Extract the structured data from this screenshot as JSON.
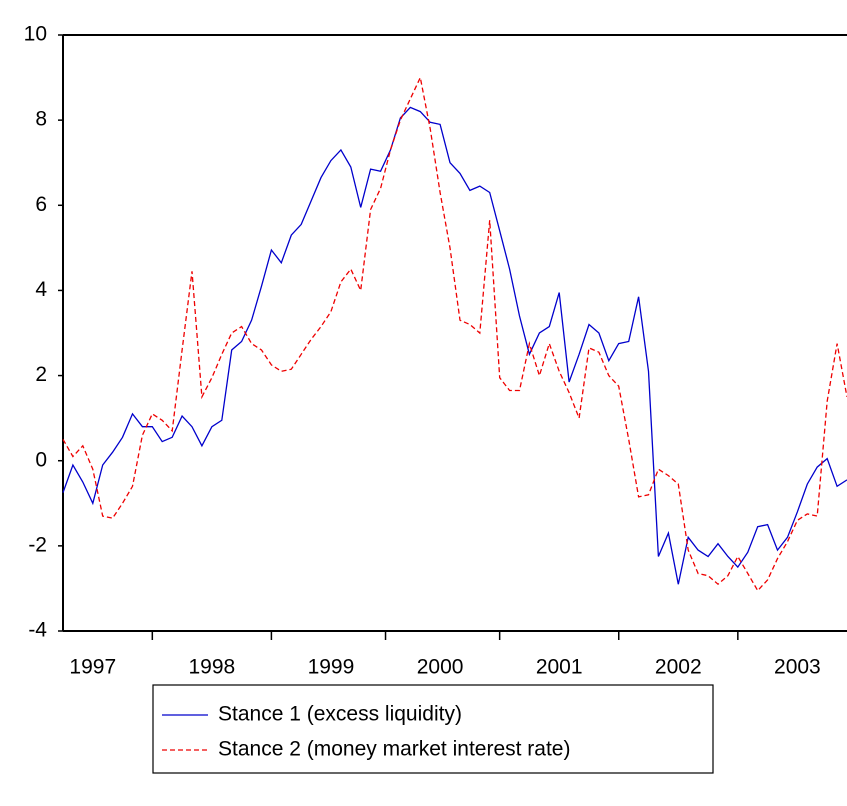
{
  "chart_data": {
    "type": "line",
    "categories": [
      null,
      null,
      null,
      "1997",
      null,
      null,
      null,
      null,
      null,
      null,
      null,
      null,
      null,
      null,
      null,
      "1998",
      null,
      null,
      null,
      null,
      null,
      null,
      null,
      null,
      null,
      null,
      null,
      "1999",
      null,
      null,
      null,
      null,
      null,
      null,
      null,
      null,
      null,
      null,
      "2000",
      null,
      null,
      null,
      null,
      null,
      null,
      null,
      null,
      null,
      null,
      null,
      "2001",
      null,
      null,
      null,
      null,
      null,
      null,
      null,
      null,
      null,
      null,
      null,
      "2002",
      null,
      null,
      null,
      null,
      null,
      null,
      null,
      null,
      null,
      null,
      null,
      "2003",
      null,
      null,
      null,
      null,
      null
    ],
    "series": [
      {
        "name": "Stance 1 (excess liquidity)",
        "color": "#0000cc",
        "dash": false,
        "values": [
          -0.75,
          -0.1,
          -0.5,
          -1.0,
          -0.1,
          0.2,
          0.55,
          1.1,
          0.8,
          0.8,
          0.45,
          0.55,
          1.05,
          0.8,
          0.35,
          0.8,
          0.95,
          2.6,
          2.8,
          3.3,
          4.1,
          4.95,
          4.65,
          5.3,
          5.55,
          6.1,
          6.65,
          7.05,
          7.3,
          6.9,
          5.95,
          6.85,
          6.8,
          7.3,
          8.05,
          8.3,
          8.2,
          7.95,
          7.9,
          7.0,
          6.75,
          6.35,
          6.45,
          6.3,
          5.4,
          4.5,
          3.4,
          2.5,
          3.0,
          3.15,
          3.95,
          1.85,
          2.5,
          3.2,
          3.0,
          2.35,
          2.75,
          2.8,
          3.85,
          2.1,
          -2.25,
          -1.7,
          -2.9,
          -1.8,
          -2.1,
          -2.25,
          -1.95,
          -2.25,
          -2.5,
          -2.15,
          -1.55,
          -1.5,
          -2.1,
          -1.8,
          -1.2,
          -0.55,
          -0.15,
          0.05,
          -0.6,
          -0.45
        ]
      },
      {
        "name": "Stance 2 (money market interest rate)",
        "color": "#ee0000",
        "dash": true,
        "values": [
          0.5,
          0.1,
          0.35,
          -0.2,
          -1.3,
          -1.35,
          -1.0,
          -0.6,
          0.6,
          1.1,
          0.95,
          0.7,
          2.6,
          4.45,
          1.5,
          1.95,
          2.5,
          3.0,
          3.15,
          2.75,
          2.6,
          2.25,
          2.1,
          2.15,
          2.5,
          2.85,
          3.15,
          3.5,
          4.2,
          4.5,
          4.0,
          5.9,
          6.4,
          7.3,
          8.0,
          8.5,
          9.0,
          7.8,
          6.3,
          5.0,
          3.3,
          3.2,
          3.0,
          5.65,
          1.95,
          1.65,
          1.65,
          2.75,
          2.0,
          2.75,
          2.1,
          1.6,
          1.0,
          2.65,
          2.55,
          2.0,
          1.75,
          0.5,
          -0.85,
          -0.8,
          -0.2,
          -0.35,
          -0.55,
          -2.1,
          -2.65,
          -2.7,
          -2.9,
          -2.7,
          -2.25,
          -2.65,
          -3.05,
          -2.8,
          -2.3,
          -1.9,
          -1.4,
          -1.25,
          -1.3,
          1.4,
          2.75,
          1.5
        ]
      }
    ],
    "ylim": [
      -4,
      10
    ],
    "yticks": [
      -4,
      -2,
      0,
      2,
      4,
      6,
      8,
      10
    ],
    "grid": false,
    "legend": "bottom"
  }
}
